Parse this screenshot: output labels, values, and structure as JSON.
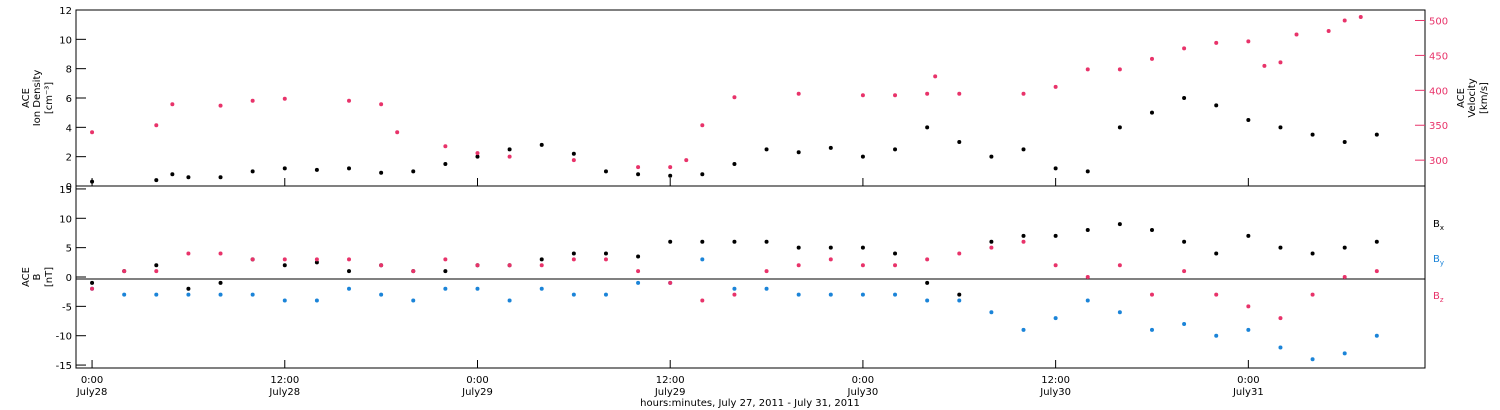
{
  "chart_data": [
    {
      "type": "scatter",
      "panel": "top",
      "left_axis": {
        "label_lines": [
          "ACE",
          "Ion Density",
          "[cm⁻³]"
        ],
        "range": [
          0,
          12
        ],
        "ticks": [
          "0",
          "2",
          "4",
          "6",
          "8",
          "10",
          "12"
        ]
      },
      "right_axis": {
        "label_lines": [
          "ACE",
          "Velocity",
          "[km/s]"
        ],
        "range": [
          263,
          515
        ],
        "ticks": [
          "300",
          "350",
          "400",
          "450",
          "500"
        ],
        "color": "#e8336a"
      },
      "series": [
        {
          "name": "",
          "color": "#000000",
          "axis": "left",
          "points": [
            [
              0,
              0.3
            ],
            [
              4,
              0.4
            ],
            [
              5,
              0.8
            ],
            [
              6,
              0.6
            ],
            [
              8,
              0.6
            ],
            [
              10,
              1.0
            ],
            [
              12,
              1.2
            ],
            [
              14,
              1.1
            ],
            [
              16,
              1.2
            ],
            [
              18,
              0.9
            ],
            [
              20,
              1.0
            ],
            [
              22,
              1.5
            ],
            [
              24,
              2.0
            ],
            [
              26,
              2.5
            ],
            [
              28,
              2.8
            ],
            [
              30,
              2.2
            ],
            [
              32,
              1.0
            ],
            [
              34,
              0.8
            ],
            [
              36,
              0.7
            ],
            [
              38,
              0.8
            ],
            [
              40,
              1.5
            ],
            [
              42,
              2.5
            ],
            [
              44,
              2.3
            ],
            [
              46,
              2.6
            ],
            [
              48,
              2.0
            ],
            [
              50,
              2.5
            ],
            [
              52,
              4.0
            ],
            [
              54,
              3.0
            ],
            [
              56,
              2.0
            ],
            [
              58,
              2.5
            ],
            [
              60,
              1.2
            ],
            [
              62,
              1.0
            ],
            [
              64,
              4.0
            ],
            [
              66,
              5.0
            ],
            [
              68,
              6.0
            ],
            [
              70,
              5.5
            ],
            [
              72,
              4.5
            ],
            [
              74,
              4.0
            ],
            [
              76,
              3.5
            ],
            [
              78,
              3.0
            ],
            [
              80,
              3.5
            ]
          ]
        },
        {
          "name": "",
          "color": "#e8336a",
          "axis": "right",
          "points": [
            [
              0,
              340
            ],
            [
              4,
              350
            ],
            [
              5,
              380
            ],
            [
              8,
              378
            ],
            [
              10,
              385
            ],
            [
              12,
              388
            ],
            [
              16,
              385
            ],
            [
              18,
              380
            ],
            [
              19,
              340
            ],
            [
              22,
              320
            ],
            [
              24,
              310
            ],
            [
              26,
              305
            ],
            [
              30,
              300
            ],
            [
              34,
              290
            ],
            [
              36,
              290
            ],
            [
              37,
              300
            ],
            [
              38,
              350
            ],
            [
              40,
              390
            ],
            [
              44,
              395
            ],
            [
              48,
              393
            ],
            [
              50,
              393
            ],
            [
              52,
              395
            ],
            [
              52.5,
              420
            ],
            [
              54,
              395
            ],
            [
              58,
              395
            ],
            [
              60,
              405
            ],
            [
              62,
              430
            ],
            [
              64,
              430
            ],
            [
              66,
              445
            ],
            [
              68,
              460
            ],
            [
              70,
              468
            ],
            [
              72,
              470
            ],
            [
              73,
              435
            ],
            [
              74,
              440
            ],
            [
              75,
              480
            ],
            [
              77,
              485
            ],
            [
              78,
              500
            ],
            [
              79,
              505
            ]
          ]
        }
      ]
    },
    {
      "type": "scatter",
      "panel": "bottom",
      "left_axis": {
        "label_lines": [
          "ACE",
          "B",
          "[nT]"
        ],
        "range": [
          -15.5,
          15.5
        ],
        "ticks": [
          "-15",
          "-10",
          "-5",
          "0",
          "5",
          "10",
          "15"
        ]
      },
      "series": [
        {
          "name": "Bx",
          "color": "#000000",
          "points": [
            [
              0,
              -1
            ],
            [
              2,
              1
            ],
            [
              4,
              2
            ],
            [
              6,
              -2
            ],
            [
              8,
              -1
            ],
            [
              10,
              3
            ],
            [
              12,
              2
            ],
            [
              14,
              2.5
            ],
            [
              16,
              1
            ],
            [
              18,
              2
            ],
            [
              20,
              1
            ],
            [
              22,
              1
            ],
            [
              24,
              2
            ],
            [
              26,
              2
            ],
            [
              28,
              3
            ],
            [
              30,
              4
            ],
            [
              32,
              4
            ],
            [
              34,
              3.5
            ],
            [
              36,
              6
            ],
            [
              38,
              6
            ],
            [
              40,
              6
            ],
            [
              42,
              6
            ],
            [
              44,
              5
            ],
            [
              46,
              5
            ],
            [
              48,
              5
            ],
            [
              50,
              4
            ],
            [
              52,
              -1
            ],
            [
              54,
              -3
            ],
            [
              56,
              6
            ],
            [
              58,
              7
            ],
            [
              60,
              7
            ],
            [
              62,
              8
            ],
            [
              64,
              9
            ],
            [
              66,
              8
            ],
            [
              68,
              6
            ],
            [
              70,
              4
            ],
            [
              72,
              7
            ],
            [
              74,
              5
            ],
            [
              76,
              4
            ],
            [
              78,
              5
            ],
            [
              80,
              6
            ]
          ]
        },
        {
          "name": "By",
          "color": "#1b84d8",
          "points": [
            [
              0,
              -2
            ],
            [
              2,
              -3
            ],
            [
              4,
              -3
            ],
            [
              6,
              -3
            ],
            [
              8,
              -3
            ],
            [
              10,
              -3
            ],
            [
              12,
              -4
            ],
            [
              14,
              -4
            ],
            [
              16,
              -2
            ],
            [
              18,
              -3
            ],
            [
              20,
              -4
            ],
            [
              22,
              -2
            ],
            [
              24,
              -2
            ],
            [
              26,
              -4
            ],
            [
              28,
              -2
            ],
            [
              30,
              -3
            ],
            [
              32,
              -3
            ],
            [
              34,
              -1
            ],
            [
              36,
              -1
            ],
            [
              38,
              3
            ],
            [
              40,
              -2
            ],
            [
              42,
              -2
            ],
            [
              44,
              -3
            ],
            [
              46,
              -3
            ],
            [
              48,
              -3
            ],
            [
              50,
              -3
            ],
            [
              52,
              -4
            ],
            [
              54,
              -4
            ],
            [
              56,
              -6
            ],
            [
              58,
              -9
            ],
            [
              60,
              -7
            ],
            [
              62,
              -4
            ],
            [
              64,
              -6
            ],
            [
              66,
              -9
            ],
            [
              68,
              -8
            ],
            [
              70,
              -10
            ],
            [
              72,
              -9
            ],
            [
              74,
              -12
            ],
            [
              76,
              -14
            ],
            [
              78,
              -13
            ],
            [
              80,
              -10
            ]
          ]
        },
        {
          "name": "Bz",
          "color": "#e8336a",
          "points": [
            [
              0,
              -2
            ],
            [
              2,
              1
            ],
            [
              4,
              1
            ],
            [
              6,
              4
            ],
            [
              8,
              4
            ],
            [
              10,
              3
            ],
            [
              12,
              3
            ],
            [
              14,
              3
            ],
            [
              16,
              3
            ],
            [
              18,
              2
            ],
            [
              20,
              1
            ],
            [
              22,
              3
            ],
            [
              24,
              2
            ],
            [
              26,
              2
            ],
            [
              28,
              2
            ],
            [
              30,
              3
            ],
            [
              32,
              3
            ],
            [
              34,
              1
            ],
            [
              36,
              -1
            ],
            [
              38,
              -4
            ],
            [
              40,
              -3
            ],
            [
              42,
              1
            ],
            [
              44,
              2
            ],
            [
              46,
              3
            ],
            [
              48,
              2
            ],
            [
              50,
              2
            ],
            [
              52,
              3
            ],
            [
              54,
              4
            ],
            [
              56,
              5
            ],
            [
              58,
              6
            ],
            [
              60,
              2
            ],
            [
              62,
              0
            ],
            [
              64,
              2
            ],
            [
              66,
              -3
            ],
            [
              68,
              1
            ],
            [
              70,
              -3
            ],
            [
              72,
              -5
            ],
            [
              74,
              -7
            ],
            [
              76,
              -3
            ],
            [
              78,
              0
            ],
            [
              80,
              1
            ]
          ]
        }
      ],
      "legend": [
        "Bx",
        "By",
        "Bz"
      ],
      "legend_sub": [
        "x",
        "y",
        "z"
      ]
    }
  ],
  "x_axis": {
    "range_hours": [
      -1,
      83
    ],
    "tick_hours": [
      0,
      12,
      24,
      36,
      48,
      60,
      72
    ],
    "tick_labels": [
      "0:00",
      "12:00",
      "0:00",
      "12:00",
      "0:00",
      "12:00",
      "0:00"
    ],
    "tick_dates": [
      "July28",
      "July28",
      "July29",
      "July29",
      "July30",
      "July30",
      "July31"
    ],
    "title": "hours:minutes, July 27, 2011 - July 31, 2011"
  },
  "legend_labels": [
    "B",
    "B",
    "B"
  ]
}
